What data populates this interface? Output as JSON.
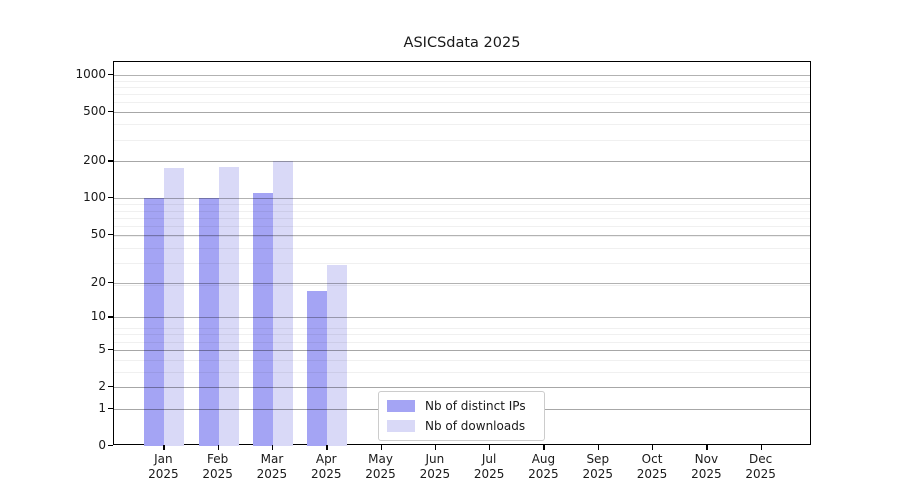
{
  "title": "ASICSdata 2025",
  "chart_data": {
    "type": "bar",
    "title": "ASICSdata 2025",
    "categories": [
      "Jan",
      "Feb",
      "Mar",
      "Apr",
      "May",
      "Jun",
      "Jul",
      "Aug",
      "Sep",
      "Oct",
      "Nov",
      "Dec"
    ],
    "year": "2025",
    "series": [
      {
        "name": "Nb of distinct IPs",
        "color": "#a4a4f4",
        "values": [
          100,
          100,
          110,
          17,
          0,
          0,
          0,
          0,
          0,
          0,
          0,
          0
        ]
      },
      {
        "name": "Nb of downloads",
        "color": "#d9d9f7",
        "values": [
          175,
          180,
          200,
          28,
          0,
          0,
          0,
          0,
          0,
          0,
          0,
          0
        ]
      }
    ],
    "yticks": [
      0,
      1,
      2,
      5,
      10,
      20,
      50,
      100,
      200,
      500,
      1000
    ],
    "ylim": [
      0,
      1275
    ],
    "scale": "log10(value+1)",
    "grid": true,
    "legend_position": "lower-center-inside",
    "colors": {
      "major_grid": "#b3b3b3",
      "minor_grid": "#efefef",
      "spine": "#000000",
      "text": "#1a1a1a",
      "background": "#ffffff"
    }
  }
}
